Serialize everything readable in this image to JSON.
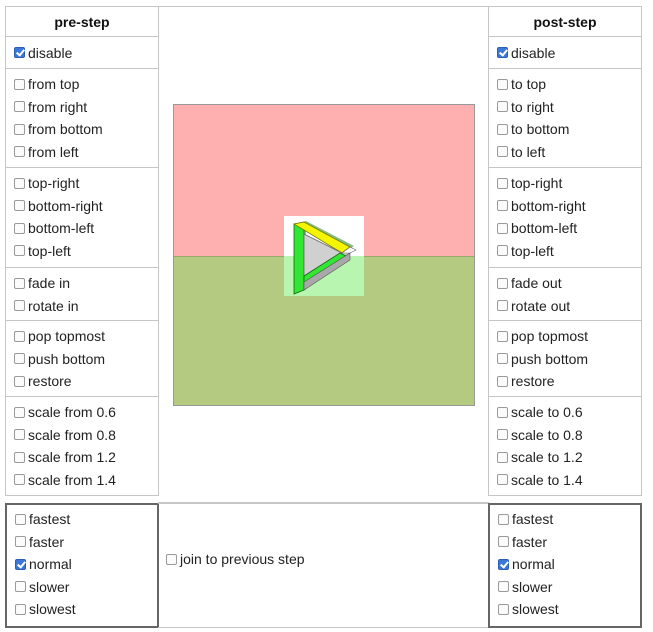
{
  "left": {
    "header": "pre-step",
    "disable": {
      "label": "disable",
      "checked": true
    },
    "groups": [
      [
        {
          "label": "from top",
          "checked": false
        },
        {
          "label": "from right",
          "checked": false
        },
        {
          "label": "from bottom",
          "checked": false
        },
        {
          "label": "from left",
          "checked": false
        }
      ],
      [
        {
          "label": "top-right",
          "checked": false
        },
        {
          "label": "bottom-right",
          "checked": false
        },
        {
          "label": "bottom-left",
          "checked": false
        },
        {
          "label": "top-left",
          "checked": false
        }
      ],
      [
        {
          "label": "fade in",
          "checked": false
        },
        {
          "label": "rotate in",
          "checked": false
        }
      ],
      [
        {
          "label": "pop topmost",
          "checked": false
        },
        {
          "label": "push bottom",
          "checked": false
        },
        {
          "label": "restore",
          "checked": false
        }
      ],
      [
        {
          "label": "scale from 0.6",
          "checked": false
        },
        {
          "label": "scale from 0.8",
          "checked": false
        },
        {
          "label": "scale from 1.2",
          "checked": false
        },
        {
          "label": "scale from 1.4",
          "checked": false
        }
      ]
    ],
    "speed": [
      {
        "label": "fastest",
        "checked": false
      },
      {
        "label": "faster",
        "checked": false
      },
      {
        "label": "normal",
        "checked": true
      },
      {
        "label": "slower",
        "checked": false
      },
      {
        "label": "slowest",
        "checked": false
      }
    ]
  },
  "right": {
    "header": "post-step",
    "disable": {
      "label": "disable",
      "checked": true
    },
    "groups": [
      [
        {
          "label": "to top",
          "checked": false
        },
        {
          "label": "to right",
          "checked": false
        },
        {
          "label": "to bottom",
          "checked": false
        },
        {
          "label": "to left",
          "checked": false
        }
      ],
      [
        {
          "label": "top-right",
          "checked": false
        },
        {
          "label": "bottom-right",
          "checked": false
        },
        {
          "label": "bottom-left",
          "checked": false
        },
        {
          "label": "top-left",
          "checked": false
        }
      ],
      [
        {
          "label": "fade out",
          "checked": false
        },
        {
          "label": "rotate out",
          "checked": false
        }
      ],
      [
        {
          "label": "pop topmost",
          "checked": false
        },
        {
          "label": "push bottom",
          "checked": false
        },
        {
          "label": "restore",
          "checked": false
        }
      ],
      [
        {
          "label": "scale to 0.6",
          "checked": false
        },
        {
          "label": "scale to 0.8",
          "checked": false
        },
        {
          "label": "scale to 1.2",
          "checked": false
        },
        {
          "label": "scale to 1.4",
          "checked": false
        }
      ]
    ],
    "speed": [
      {
        "label": "fastest",
        "checked": false
      },
      {
        "label": "faster",
        "checked": false
      },
      {
        "label": "normal",
        "checked": true
      },
      {
        "label": "slower",
        "checked": false
      },
      {
        "label": "slowest",
        "checked": false
      }
    ]
  },
  "middle": {
    "join": {
      "label": "join to previous step",
      "checked": false
    }
  },
  "colors": {
    "top_layer": "#feb0b0",
    "bottom_layer": "#b3ca80",
    "check_accent": "#3b78d8"
  },
  "icons": {
    "stage_icon": "impossible-triangle-icon"
  }
}
